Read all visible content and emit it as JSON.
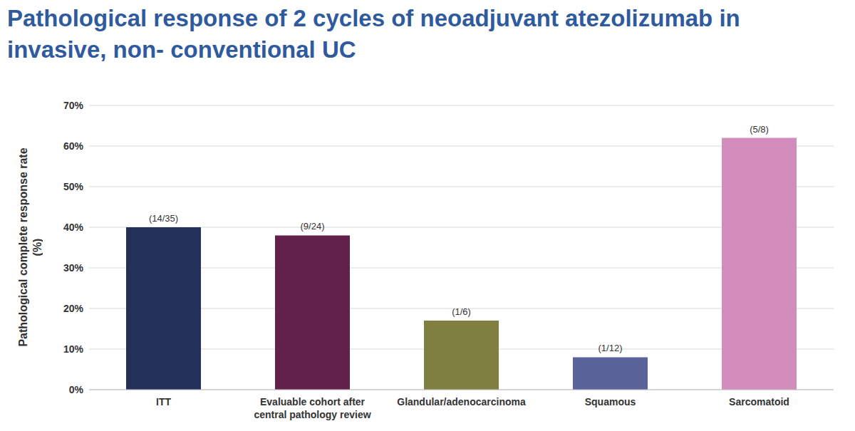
{
  "chart_data": {
    "type": "bar",
    "title": "Pathological response of 2 cycles of neoadjuvant atezolizumab in invasive, non- conventional UC",
    "y_label": "Pathological complete response rate (%)",
    "categories": [
      "ITT",
      "Evaluable cohort after central pathology review",
      "Glandular/adenocarcinoma",
      "Squamous",
      "Sarcomatoid"
    ],
    "values": [
      40,
      38,
      17,
      8,
      62
    ],
    "annotations": [
      "(14/35)",
      "(9/24)",
      "(1/6)",
      "(1/12)",
      "(5/8)"
    ],
    "colors": [
      "#23305a",
      "#62214b",
      "#7f8040",
      "#5a6399",
      "#d28dbd"
    ],
    "ylim": [
      0,
      70
    ],
    "yticks": [
      {
        "value": 0,
        "label": "0%"
      },
      {
        "value": 10,
        "label": "10%"
      },
      {
        "value": 20,
        "label": "20%"
      },
      {
        "value": 30,
        "label": "30%"
      },
      {
        "value": 40,
        "label": "40%"
      },
      {
        "value": 50,
        "label": "50%"
      },
      {
        "value": 60,
        "label": "60%"
      },
      {
        "value": 70,
        "label": "70%"
      }
    ],
    "grid": true
  }
}
